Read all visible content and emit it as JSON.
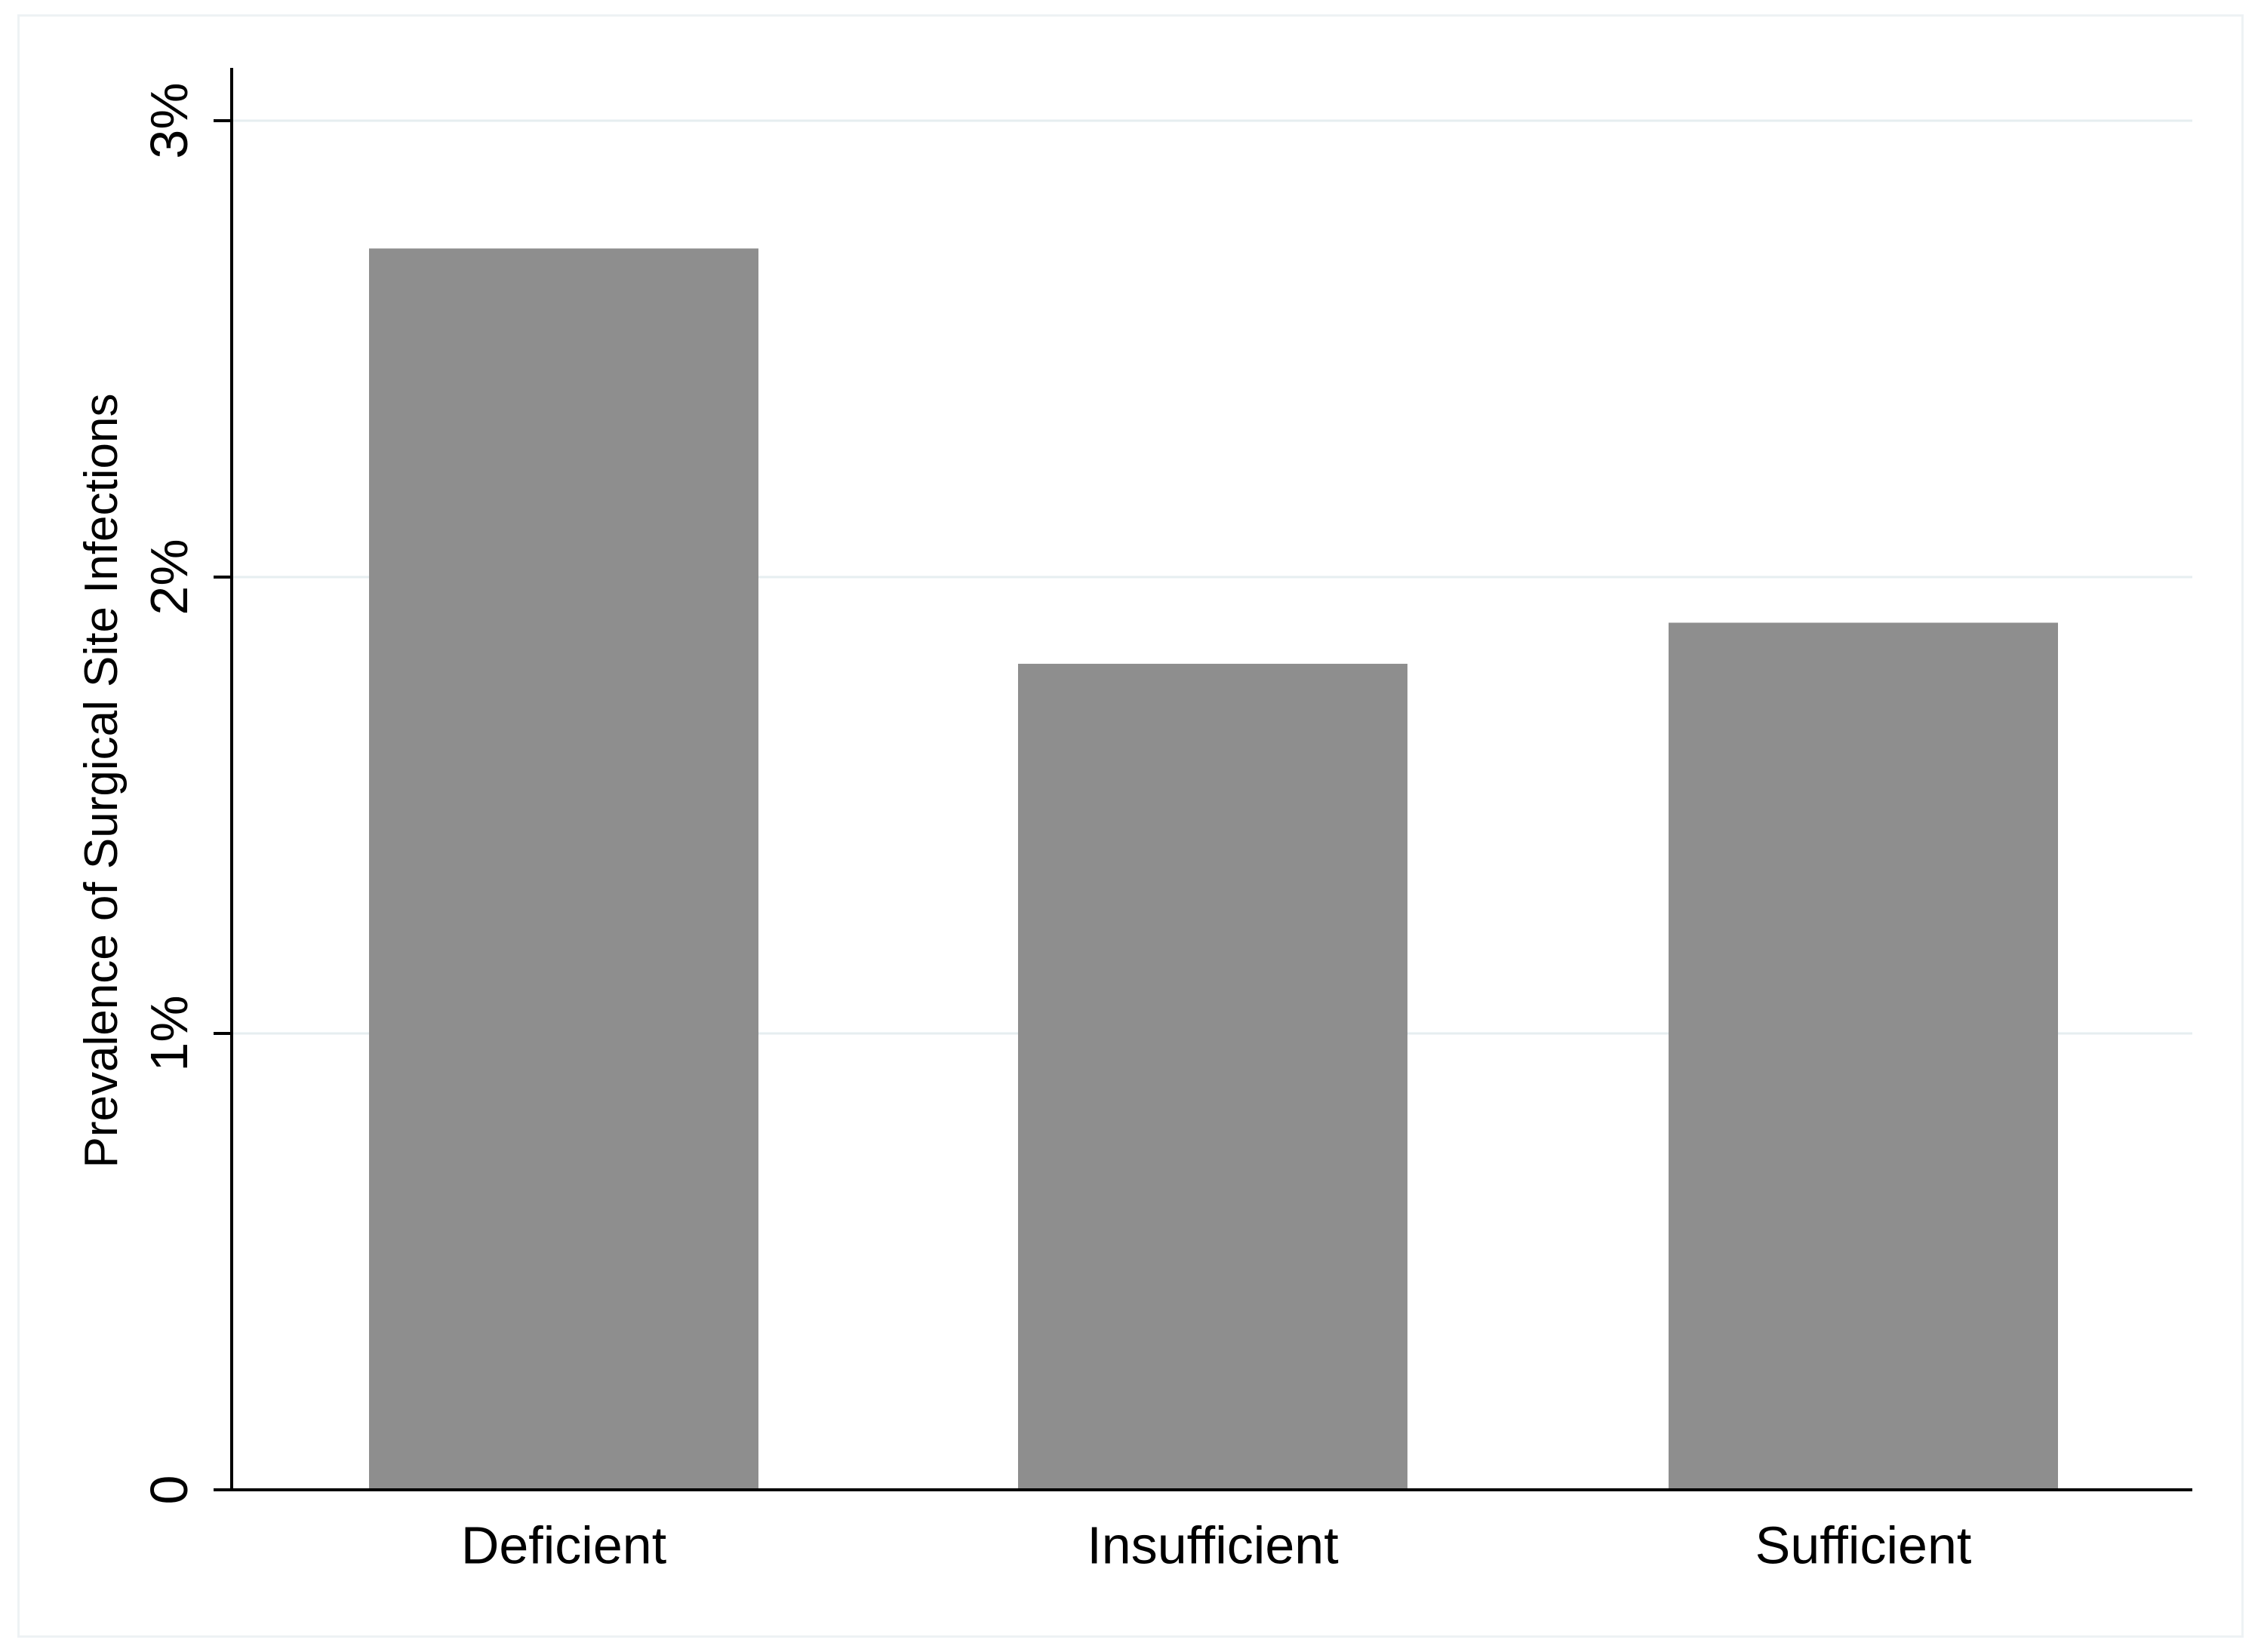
{
  "chart_data": {
    "type": "bar",
    "title": "",
    "xlabel": "",
    "ylabel": "Prevalence of Surgical Site Infections",
    "categories": [
      "Deficient",
      "Insufficient",
      "Sufficient"
    ],
    "values": [
      2.72,
      1.81,
      1.9
    ],
    "ylim": [
      0,
      3
    ],
    "yticks": [
      0,
      1,
      2,
      3
    ],
    "ytick_labels": [
      "0",
      "1%",
      "2%",
      "3%"
    ],
    "grid": true,
    "legend": "none",
    "colors": {
      "bar": "#8e8e8e",
      "grid": "#e6eef0",
      "axis": "#000000",
      "frame": "#eef2f4"
    }
  }
}
